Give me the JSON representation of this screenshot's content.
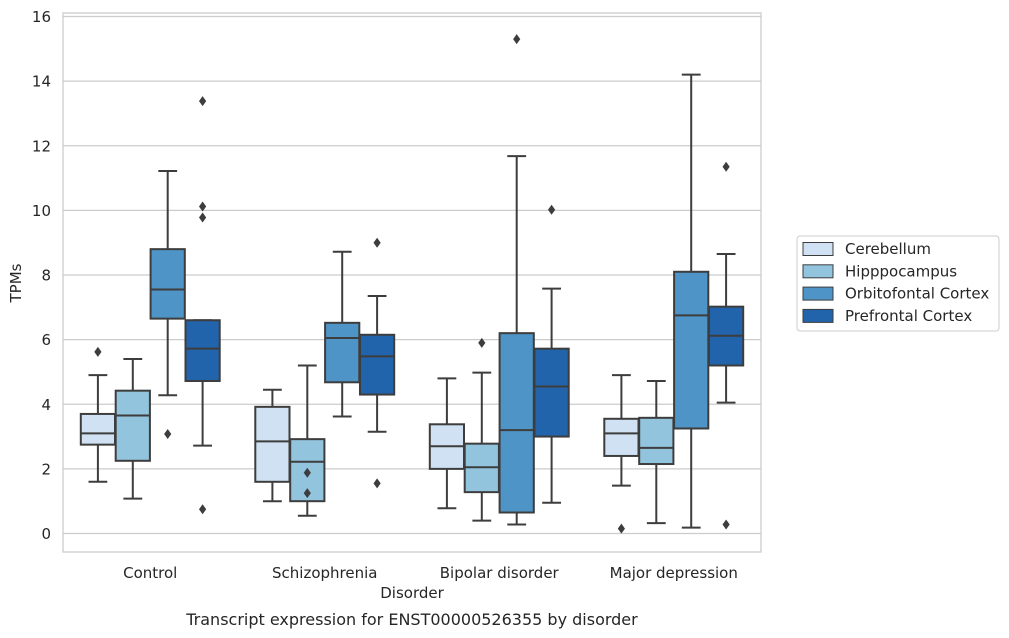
{
  "caption": "Transcript expression for ENST00000526355 by disorder",
  "chart_data": {
    "type": "box",
    "title": "",
    "xlabel": "Disorder",
    "ylabel": "TPMs",
    "ylim": [
      -0.55,
      16.1
    ],
    "yticks": [
      0,
      2,
      4,
      6,
      8,
      10,
      12,
      14,
      16
    ],
    "grid": "horizontal",
    "legend_position": "right",
    "categories": [
      "Control",
      "Schizophrenia",
      "Bipolar disorder",
      "Major depression"
    ],
    "series": [
      {
        "name": "Cerebellum",
        "color": "#cfe1f2",
        "boxes": [
          {
            "whislo": 1.6,
            "q1": 2.75,
            "med": 3.1,
            "q3": 3.7,
            "whishi": 4.9,
            "fliers": [
              5.62
            ]
          },
          {
            "whislo": 1.0,
            "q1": 1.6,
            "med": 2.85,
            "q3": 3.92,
            "whishi": 4.45,
            "fliers": []
          },
          {
            "whislo": 0.78,
            "q1": 2.0,
            "med": 2.7,
            "q3": 3.38,
            "whishi": 4.8,
            "fliers": []
          },
          {
            "whislo": 1.48,
            "q1": 2.4,
            "med": 3.1,
            "q3": 3.55,
            "whishi": 4.9,
            "fliers": [
              0.15
            ]
          }
        ]
      },
      {
        "name": "Hipppocampus",
        "color": "#93c4de",
        "boxes": [
          {
            "whislo": 1.08,
            "q1": 2.25,
            "med": 3.65,
            "q3": 4.42,
            "whishi": 5.4,
            "fliers": []
          },
          {
            "whislo": 0.55,
            "q1": 1.0,
            "med": 2.22,
            "q3": 2.92,
            "whishi": 5.2,
            "fliers": [
              1.88,
              1.25
            ]
          },
          {
            "whislo": 0.4,
            "q1": 1.28,
            "med": 2.05,
            "q3": 2.78,
            "whishi": 4.98,
            "fliers": [
              5.9
            ]
          },
          {
            "whislo": 0.32,
            "q1": 2.15,
            "med": 2.65,
            "q3": 3.58,
            "whishi": 4.72,
            "fliers": []
          }
        ]
      },
      {
        "name": "Orbitofontal Cortex",
        "color": "#4f94c6",
        "boxes": [
          {
            "whislo": 4.28,
            "q1": 6.65,
            "med": 7.55,
            "q3": 8.8,
            "whishi": 11.22,
            "fliers": [
              3.08
            ]
          },
          {
            "whislo": 3.62,
            "q1": 4.68,
            "med": 6.05,
            "q3": 6.52,
            "whishi": 8.72,
            "fliers": []
          },
          {
            "whislo": 0.28,
            "q1": 0.65,
            "med": 3.2,
            "q3": 6.2,
            "whishi": 11.68,
            "fliers": [
              15.3
            ]
          },
          {
            "whislo": 0.18,
            "q1": 3.25,
            "med": 6.75,
            "q3": 8.1,
            "whishi": 14.2,
            "fliers": []
          }
        ]
      },
      {
        "name": "Prefrontal Cortex",
        "color": "#2264ab",
        "boxes": [
          {
            "whislo": 2.72,
            "q1": 4.72,
            "med": 5.72,
            "q3": 6.6,
            "whishi": 6.6,
            "fliers": [
              13.38,
              10.12,
              9.78,
              0.75
            ]
          },
          {
            "whislo": 3.15,
            "q1": 4.3,
            "med": 5.48,
            "q3": 6.15,
            "whishi": 7.35,
            "fliers": [
              9.0,
              1.55
            ]
          },
          {
            "whislo": 0.95,
            "q1": 3.0,
            "med": 4.55,
            "q3": 5.72,
            "whishi": 7.58,
            "fliers": [
              10.02
            ]
          },
          {
            "whislo": 4.05,
            "q1": 5.2,
            "med": 6.12,
            "q3": 7.02,
            "whishi": 8.65,
            "fliers": [
              11.35,
              0.28
            ]
          }
        ]
      }
    ]
  }
}
